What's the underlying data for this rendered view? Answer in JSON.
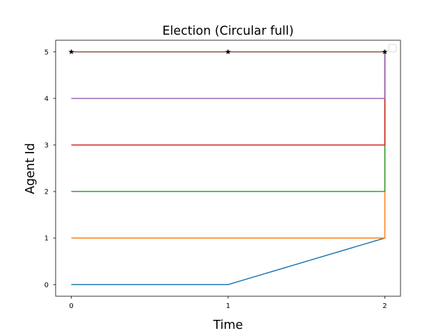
{
  "chart_data": {
    "type": "line",
    "title": "Election (Circular full)",
    "xlabel": "Time",
    "ylabel": "Agent Id",
    "xlim": [
      -0.1,
      2.1
    ],
    "ylim": [
      -0.25,
      5.25
    ],
    "xticks": [
      0,
      1,
      2
    ],
    "yticks": [
      0,
      1,
      2,
      3,
      4,
      5
    ],
    "grid": false,
    "legend": {
      "location": "upper right",
      "entries": []
    },
    "series": [
      {
        "color": "#1f77b4",
        "points": [
          [
            0,
            0
          ],
          [
            1,
            0
          ],
          [
            2,
            1
          ]
        ]
      },
      {
        "color": "#ff7f0e",
        "points": [
          [
            0,
            1
          ],
          [
            1,
            1
          ],
          [
            2,
            1
          ],
          [
            2,
            5
          ]
        ]
      },
      {
        "color": "#2ca02c",
        "points": [
          [
            0,
            2
          ],
          [
            1,
            2
          ],
          [
            2,
            2
          ],
          [
            2,
            5
          ]
        ]
      },
      {
        "color": "#d62728",
        "points": [
          [
            0,
            3
          ],
          [
            1,
            3
          ],
          [
            2,
            3
          ],
          [
            2,
            5
          ]
        ]
      },
      {
        "color": "#9467bd",
        "points": [
          [
            0,
            4
          ],
          [
            1,
            4
          ],
          [
            2,
            4
          ],
          [
            2,
            5
          ]
        ]
      },
      {
        "color": "#8c564b",
        "points": [
          [
            0,
            5
          ],
          [
            1,
            5
          ],
          [
            2,
            5
          ]
        ]
      }
    ],
    "markers": {
      "marker": "star",
      "color": "#000000",
      "points": [
        [
          0,
          5
        ],
        [
          1,
          5
        ],
        [
          2,
          5
        ]
      ]
    }
  }
}
